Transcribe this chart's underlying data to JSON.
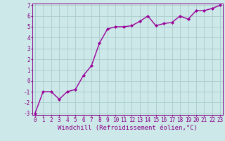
{
  "x_data": [
    0,
    1,
    2,
    3,
    4,
    5,
    6,
    7,
    8,
    9,
    10,
    11,
    12,
    13,
    14,
    15,
    16,
    17,
    18,
    19,
    20,
    21,
    22,
    23
  ],
  "y_data": [
    -3.0,
    -1.0,
    -1.0,
    -1.7,
    -1.0,
    -0.8,
    0.5,
    1.4,
    3.5,
    4.8,
    5.0,
    5.0,
    5.1,
    5.5,
    6.0,
    5.1,
    5.3,
    5.4,
    6.0,
    5.7,
    6.5,
    6.5,
    6.7,
    7.0
  ],
  "line_color": "#990099",
  "marker": "D",
  "marker_size": 2.0,
  "bg_color": "#cce8e8",
  "grid_color": "#aacccc",
  "xlabel": "Windchill (Refroidissement éolien,°C)",
  "ylim_min": -3,
  "ylim_max": 7,
  "xlim_min": 0,
  "xlim_max": 23,
  "yticks": [
    -3,
    -2,
    -1,
    0,
    1,
    2,
    3,
    4,
    5,
    6,
    7
  ],
  "xticks": [
    0,
    1,
    2,
    3,
    4,
    5,
    6,
    7,
    8,
    9,
    10,
    11,
    12,
    13,
    14,
    15,
    16,
    17,
    18,
    19,
    20,
    21,
    22,
    23
  ],
  "tick_label_color": "#880088",
  "tick_label_fontsize": 5.5,
  "xlabel_fontsize": 6.5,
  "xlabel_color": "#880088",
  "line_width": 1.0,
  "spine_color": "#880088"
}
